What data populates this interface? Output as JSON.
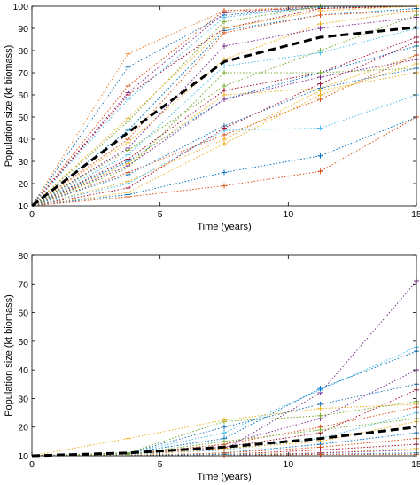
{
  "chart_data": [
    {
      "type": "line",
      "title": "",
      "xlabel": "Time (years)",
      "ylabel": "Population size (kt biomass)",
      "xlim": [
        0,
        15
      ],
      "ylim": [
        10,
        100
      ],
      "xticks": [
        0,
        5,
        10,
        15
      ],
      "yticks": [
        10,
        20,
        30,
        40,
        50,
        60,
        70,
        80,
        90,
        100
      ],
      "grid": false,
      "legend": "none",
      "x": [
        0,
        3.75,
        7.5,
        11.25,
        15
      ],
      "series_styles": {
        "simulations": "dotted lines with plus markers",
        "mean": "black dashed line"
      },
      "mean_series": {
        "color": "#000000",
        "values": [
          10,
          43,
          75,
          86,
          90.5
        ]
      },
      "series": [
        {
          "color": "#e8802a",
          "values": [
            10,
            78.5,
            98,
            100,
            100
          ]
        },
        {
          "color": "#1f77b4",
          "values": [
            10,
            72.5,
            96,
            99.5,
            100
          ]
        },
        {
          "color": "#7e2f8e",
          "values": [
            10,
            61,
            97,
            100,
            100
          ]
        },
        {
          "color": "#d95319",
          "values": [
            10,
            64,
            98,
            99,
            100
          ]
        },
        {
          "color": "#a2142f",
          "values": [
            10,
            60,
            90,
            99,
            100
          ]
        },
        {
          "color": "#4dbeee",
          "values": [
            10,
            58,
            95,
            100,
            100
          ]
        },
        {
          "color": "#77ac30",
          "values": [
            10,
            48,
            93,
            100,
            100
          ]
        },
        {
          "color": "#edb120",
          "values": [
            10,
            49.5,
            90,
            98,
            100
          ]
        },
        {
          "color": "#0072bd",
          "values": [
            10,
            44,
            89,
            96,
            99
          ]
        },
        {
          "color": "#d95319",
          "values": [
            10,
            40,
            88,
            96,
            98
          ]
        },
        {
          "color": "#edb120",
          "values": [
            10,
            38.5,
            76,
            92,
            98
          ]
        },
        {
          "color": "#7e2f8e",
          "values": [
            10,
            36,
            82,
            90,
            95
          ]
        },
        {
          "color": "#77ac30",
          "values": [
            10,
            35,
            64,
            80,
            96
          ]
        },
        {
          "color": "#4dbeee",
          "values": [
            10,
            33,
            73,
            79,
            90
          ]
        },
        {
          "color": "#a2142f",
          "values": [
            10,
            31,
            62,
            70,
            86
          ]
        },
        {
          "color": "#0072bd",
          "values": [
            10,
            30,
            58,
            70,
            82
          ]
        },
        {
          "color": "#edb120",
          "values": [
            10,
            29,
            60,
            63,
            78
          ]
        },
        {
          "color": "#7e2f8e",
          "values": [
            10,
            28,
            58,
            68,
            76
          ]
        },
        {
          "color": "#77ac30",
          "values": [
            10,
            27,
            70,
            70,
            72
          ]
        },
        {
          "color": "#d95319",
          "values": [
            10,
            25,
            42,
            58,
            78
          ]
        },
        {
          "color": "#1f77b4",
          "values": [
            10,
            24,
            46,
            63,
            72
          ]
        },
        {
          "color": "#edb120",
          "values": [
            10,
            21,
            40,
            62,
            70
          ]
        },
        {
          "color": "#4dbeee",
          "values": [
            10,
            20,
            44,
            45,
            60
          ]
        },
        {
          "color": "#a2142f",
          "values": [
            10,
            18,
            45,
            65,
            84
          ]
        },
        {
          "color": "#edb120",
          "values": [
            10,
            16,
            38,
            60,
            74
          ]
        },
        {
          "color": "#0072bd",
          "values": [
            10,
            15,
            25,
            32.5,
            50
          ]
        },
        {
          "color": "#d95319",
          "values": [
            10,
            14,
            19,
            25.5,
            50
          ]
        }
      ]
    },
    {
      "type": "line",
      "title": "",
      "xlabel": "Time (years)",
      "ylabel": "Population size (kt biomass)",
      "xlim": [
        0,
        15
      ],
      "ylim": [
        10,
        80
      ],
      "xticks": [
        0,
        5,
        10,
        15
      ],
      "yticks": [
        10,
        20,
        30,
        40,
        50,
        60,
        70,
        80
      ],
      "grid": false,
      "legend": "none",
      "x": [
        0,
        3.75,
        7.5,
        11.25,
        15
      ],
      "series_styles": {
        "simulations": "dotted lines with plus markers",
        "mean": "black dashed line"
      },
      "mean_series": {
        "color": "#000000",
        "values": [
          10,
          11,
          13,
          16,
          20
        ]
      },
      "series": [
        {
          "color": "#7e2f8e",
          "values": [
            10,
            10.5,
            12,
            32,
            71
          ]
        },
        {
          "color": "#4dbeee",
          "values": [
            10,
            11,
            18,
            33,
            48
          ]
        },
        {
          "color": "#0072bd",
          "values": [
            10,
            11,
            16,
            33.5,
            46.5
          ]
        },
        {
          "color": "#7e2f8e",
          "values": [
            10,
            10.5,
            14,
            23,
            40
          ]
        },
        {
          "color": "#1f77b4",
          "values": [
            10,
            11,
            20,
            28,
            35
          ]
        },
        {
          "color": "#a2142f",
          "values": [
            10,
            10.5,
            13,
            18,
            33
          ]
        },
        {
          "color": "#77ac30",
          "values": [
            10,
            11,
            22,
            24,
            29
          ]
        },
        {
          "color": "#edb120",
          "values": [
            10,
            16,
            22.5,
            26.5,
            28
          ]
        },
        {
          "color": "#d95319",
          "values": [
            10,
            10.5,
            14,
            20,
            27
          ]
        },
        {
          "color": "#4dbeee",
          "values": [
            10,
            10.5,
            12,
            16,
            25
          ]
        },
        {
          "color": "#77ac30",
          "values": [
            10,
            10.5,
            15,
            19,
            23
          ]
        },
        {
          "color": "#edb120",
          "values": [
            10,
            10,
            12.5,
            15,
            22
          ]
        },
        {
          "color": "#0072bd",
          "values": [
            10,
            10,
            11,
            14,
            18
          ]
        },
        {
          "color": "#d95319",
          "values": [
            10,
            10,
            11,
            13,
            16
          ]
        },
        {
          "color": "#a2142f",
          "values": [
            10,
            10,
            10.5,
            12,
            14
          ]
        },
        {
          "color": "#edb120",
          "values": [
            10,
            10,
            10.5,
            11,
            12.5
          ]
        },
        {
          "color": "#7e2f8e",
          "values": [
            10,
            10,
            10,
            11,
            12
          ]
        },
        {
          "color": "#1f77b4",
          "values": [
            10,
            10,
            10.5,
            10.5,
            11
          ]
        },
        {
          "color": "#d95319",
          "values": [
            10,
            10,
            10,
            10.5,
            10.5
          ]
        }
      ]
    }
  ]
}
